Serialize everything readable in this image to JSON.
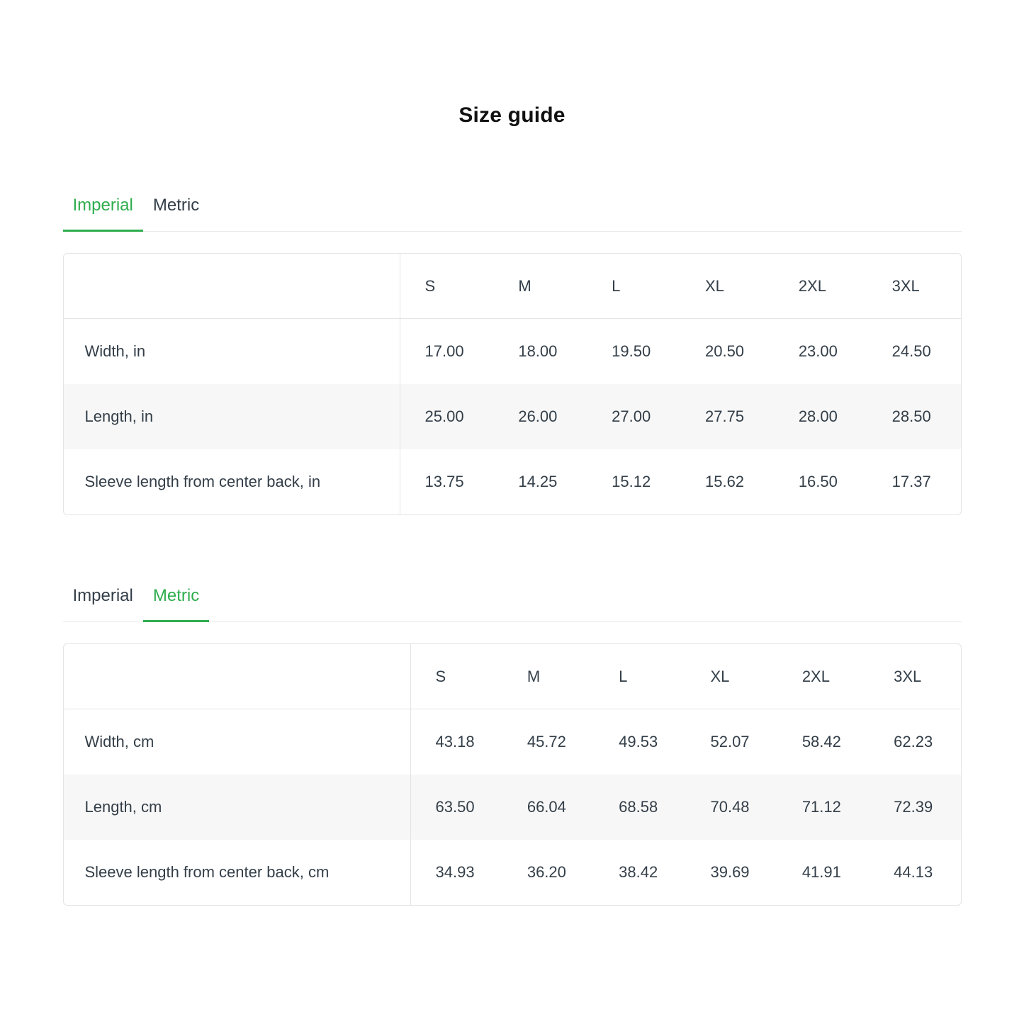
{
  "page": {
    "title": "Size guide"
  },
  "colors": {
    "accent_green": "#2ead4d",
    "text_dark": "#333e48",
    "table_border": "#e4e4e4",
    "tab_divider": "#e9e9e9",
    "row_stripe": "#f7f7f7"
  },
  "sections": [
    {
      "name": "imperial",
      "tabs": [
        {
          "label": "Imperial",
          "active": true
        },
        {
          "label": "Metric",
          "active": false
        }
      ],
      "table": {
        "columns": [
          "S",
          "M",
          "L",
          "XL",
          "2XL",
          "3XL"
        ],
        "rows": [
          {
            "label": "Width, in",
            "values": [
              "17.00",
              "18.00",
              "19.50",
              "20.50",
              "23.00",
              "24.50"
            ]
          },
          {
            "label": "Length, in",
            "values": [
              "25.00",
              "26.00",
              "27.00",
              "27.75",
              "28.00",
              "28.50"
            ]
          },
          {
            "label": "Sleeve length from center back, in",
            "values": [
              "13.75",
              "14.25",
              "15.12",
              "15.62",
              "16.50",
              "17.37"
            ]
          }
        ]
      }
    },
    {
      "name": "metric",
      "tabs": [
        {
          "label": "Imperial",
          "active": false
        },
        {
          "label": "Metric",
          "active": true
        }
      ],
      "table": {
        "columns": [
          "S",
          "M",
          "L",
          "XL",
          "2XL",
          "3XL"
        ],
        "rows": [
          {
            "label": "Width, cm",
            "values": [
              "43.18",
              "45.72",
              "49.53",
              "52.07",
              "58.42",
              "62.23"
            ]
          },
          {
            "label": "Length, cm",
            "values": [
              "63.50",
              "66.04",
              "68.58",
              "70.48",
              "71.12",
              "72.39"
            ]
          },
          {
            "label": "Sleeve length from center back, cm",
            "values": [
              "34.93",
              "36.20",
              "38.42",
              "39.69",
              "41.91",
              "44.13"
            ]
          }
        ]
      }
    }
  ]
}
